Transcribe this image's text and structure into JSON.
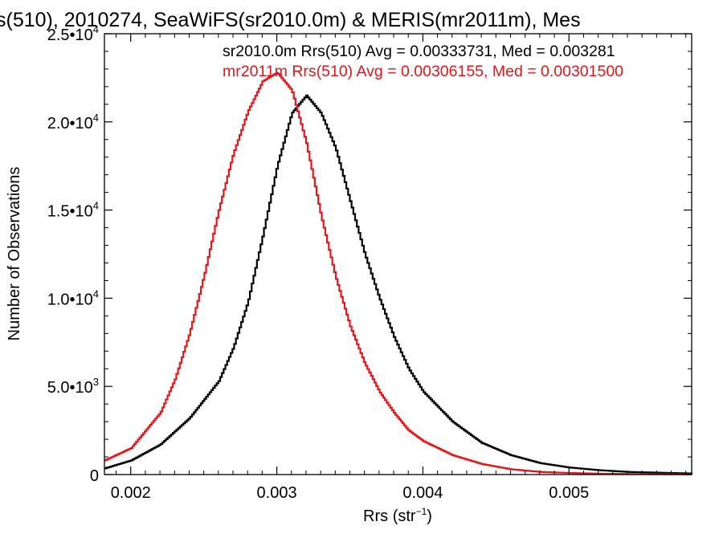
{
  "chart_data": {
    "type": "line",
    "title": "s(510), 2010274, SeaWiFS(sr2010.0m) & MERIS(mr2011m), Mes",
    "xlabel": "Rrs (str",
    "xlabel_sup": "−1",
    "xlabel_close": ")",
    "ylabel": "Number of Observations",
    "xlim": [
      0.00182,
      0.00584
    ],
    "ylim": [
      0,
      25000
    ],
    "xticks": [
      {
        "value": 0.002,
        "label": "0.002"
      },
      {
        "value": 0.003,
        "label": "0.003"
      },
      {
        "value": 0.004,
        "label": "0.004"
      },
      {
        "value": 0.005,
        "label": "0.005"
      }
    ],
    "yticks": [
      {
        "value": 0,
        "mant": "0",
        "exp": ""
      },
      {
        "value": 5000,
        "mant": "5.0•10",
        "exp": "3"
      },
      {
        "value": 10000,
        "mant": "1.0•10",
        "exp": "4"
      },
      {
        "value": 15000,
        "mant": "1.5•10",
        "exp": "4"
      },
      {
        "value": 20000,
        "mant": "2.0•10",
        "exp": "4"
      },
      {
        "value": 25000,
        "mant": "2.5•10",
        "exp": "4"
      }
    ],
    "series": [
      {
        "legend": "sr2010.0m Rrs(510) Avg = 0.00333731, Med = 0.003281",
        "color": "#000000",
        "x": [
          0.00182,
          0.002,
          0.0022,
          0.0024,
          0.0026,
          0.0027,
          0.0028,
          0.0029,
          0.003,
          0.0031,
          0.0032,
          0.0033,
          0.0034,
          0.0035,
          0.0036,
          0.0037,
          0.0038,
          0.0039,
          0.004,
          0.0042,
          0.0044,
          0.0046,
          0.0048,
          0.005,
          0.0052,
          0.0054,
          0.00584
        ],
        "y": [
          350,
          800,
          1700,
          3200,
          5300,
          7200,
          9800,
          13500,
          17500,
          20500,
          21500,
          20500,
          18500,
          15500,
          12500,
          10000,
          7800,
          6000,
          4700,
          3000,
          1800,
          1100,
          650,
          400,
          250,
          150,
          60
        ]
      },
      {
        "legend": "mr2011m Rrs(510) Avg = 0.00306155, Med = 0.00301500",
        "color": "#e8141b",
        "x": [
          0.00182,
          0.002,
          0.0022,
          0.0023,
          0.0024,
          0.0025,
          0.0026,
          0.0027,
          0.0028,
          0.0029,
          0.003,
          0.0031,
          0.0032,
          0.0033,
          0.0034,
          0.0035,
          0.0036,
          0.0037,
          0.0038,
          0.0039,
          0.004,
          0.0042,
          0.0044,
          0.0046,
          0.0048,
          0.005,
          0.0052,
          0.0054,
          0.00584
        ],
        "y": [
          800,
          1500,
          3500,
          5400,
          8000,
          11300,
          15000,
          18200,
          20600,
          22300,
          22800,
          21800,
          18800,
          14700,
          11200,
          8400,
          6300,
          4700,
          3500,
          2500,
          1900,
          1100,
          600,
          300,
          150,
          90,
          50,
          30,
          10
        ]
      }
    ],
    "grid": false,
    "legend_position": "top-right"
  }
}
